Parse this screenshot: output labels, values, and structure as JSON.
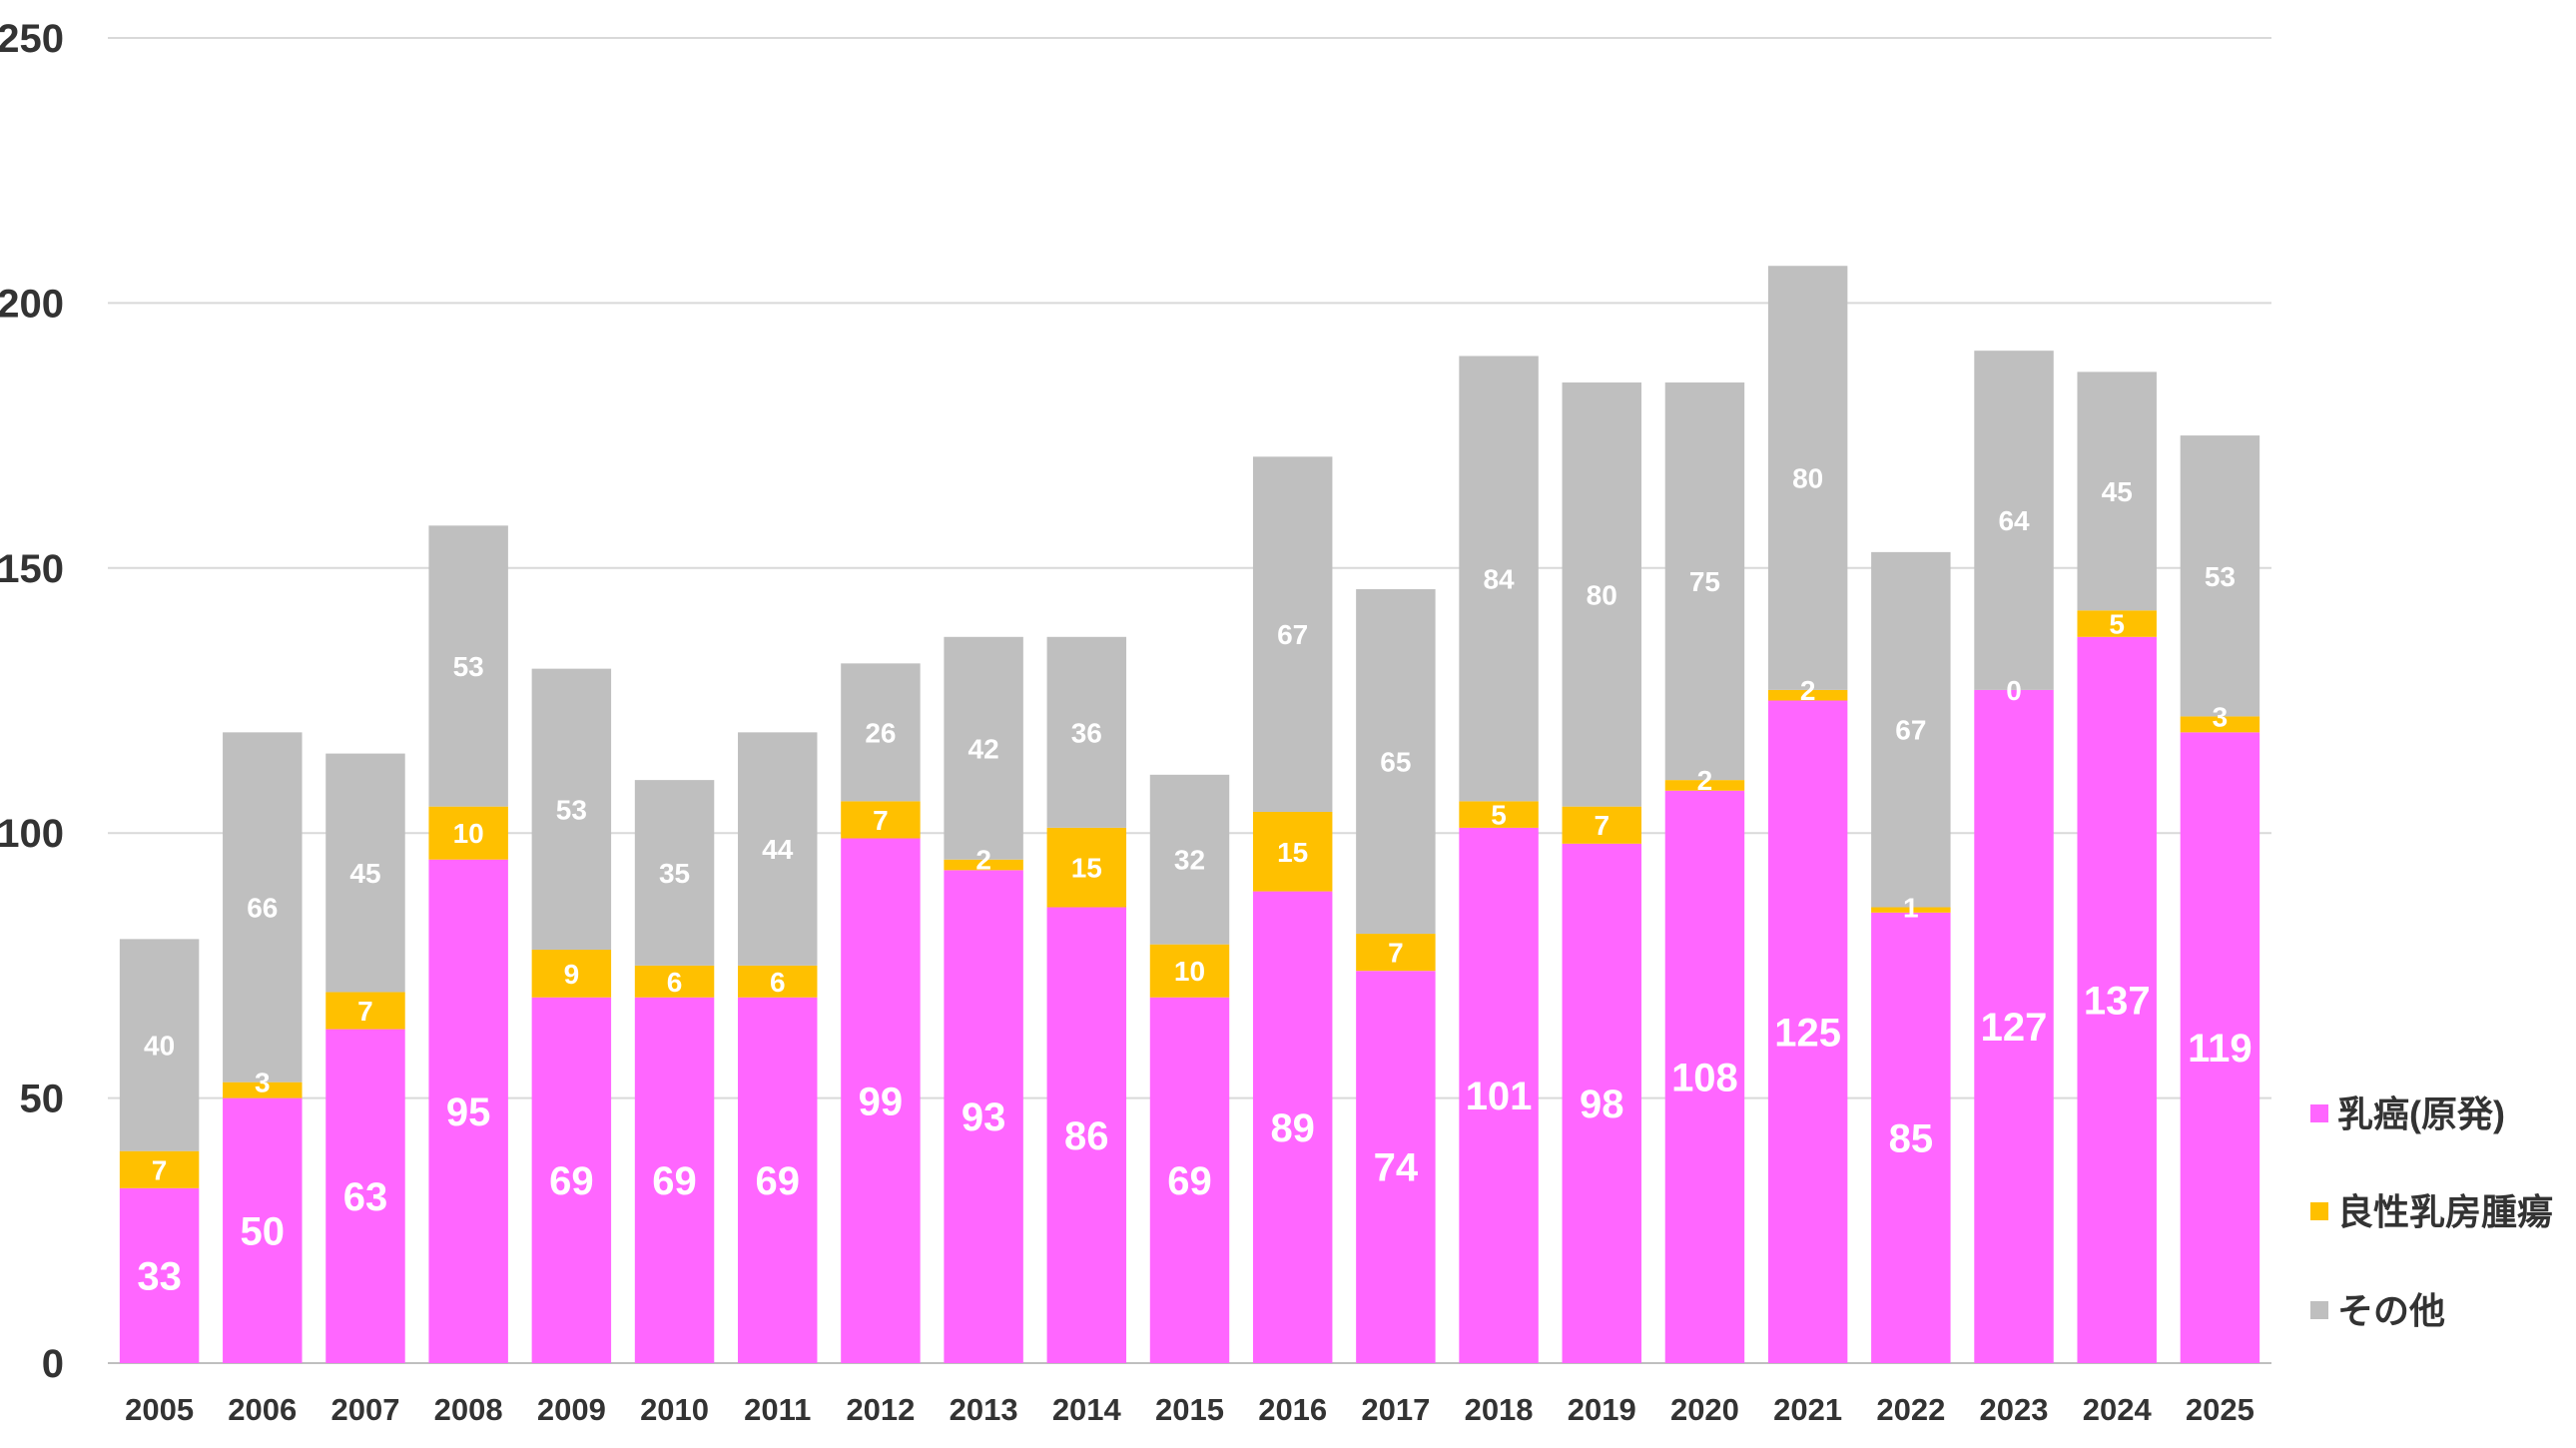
{
  "chart_data": {
    "type": "bar",
    "stacked": true,
    "title": "",
    "xlabel": "",
    "ylabel": "",
    "ylim": [
      0,
      250
    ],
    "yticks": [
      0,
      50,
      100,
      150,
      200,
      250
    ],
    "grid": true,
    "legend_position": "right",
    "categories": [
      "2005",
      "2006",
      "2007",
      "2008",
      "2009",
      "2010",
      "2011",
      "2012",
      "2013",
      "2014",
      "2015",
      "2016",
      "2017",
      "2018",
      "2019",
      "2020",
      "2021",
      "2022",
      "2023",
      "2024",
      "2025"
    ],
    "series": [
      {
        "name": "乳癌(原発)",
        "color": "#ff66ff",
        "values": [
          33,
          50,
          63,
          95,
          69,
          69,
          69,
          99,
          93,
          86,
          69,
          89,
          74,
          101,
          98,
          108,
          125,
          85,
          127,
          137,
          119
        ]
      },
      {
        "name": "良性乳房腫瘍",
        "color": "#ffc000",
        "values": [
          7,
          3,
          7,
          10,
          9,
          6,
          6,
          7,
          2,
          15,
          10,
          15,
          7,
          5,
          7,
          2,
          2,
          1,
          0,
          5,
          3
        ]
      },
      {
        "name": "その他",
        "color": "#bfbfbf",
        "values": [
          40,
          66,
          45,
          53,
          53,
          35,
          44,
          26,
          42,
          36,
          32,
          67,
          65,
          84,
          80,
          75,
          80,
          67,
          64,
          45,
          53
        ]
      }
    ]
  }
}
